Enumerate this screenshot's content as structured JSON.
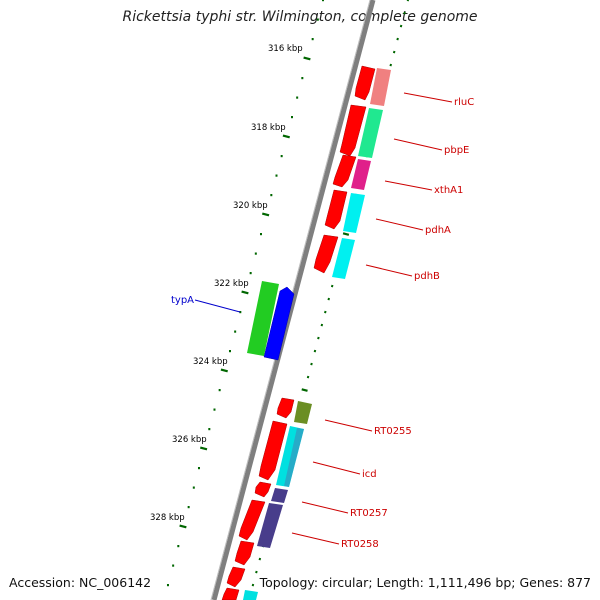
{
  "header": {
    "title": "Rickettsia typhi str. Wilmington, complete genome"
  },
  "footer": {
    "accession": "Accession: NC_006142",
    "summary": "Topology: circular; Length: 1,111,496 bp; Genes: 877"
  },
  "scale": {
    "ticks": [
      "316 kbp",
      "318 kbp",
      "320 kbp",
      "322 kbp",
      "324 kbp",
      "326 kbp",
      "328 kbp"
    ]
  },
  "genes": [
    {
      "label": "rluC",
      "color": "#cc0000"
    },
    {
      "label": "pbpE",
      "color": "#cc0000"
    },
    {
      "label": "xthA1",
      "color": "#cc0000"
    },
    {
      "label": "pdhA",
      "color": "#cc0000"
    },
    {
      "label": "pdhB",
      "color": "#cc0000"
    },
    {
      "label": "typA",
      "color": "#0000cc"
    },
    {
      "label": "RT0255",
      "color": "#cc0000"
    },
    {
      "label": "icd",
      "color": "#cc0000"
    },
    {
      "label": "RT0257",
      "color": "#cc0000"
    },
    {
      "label": "RT0258",
      "color": "#cc0000"
    }
  ],
  "colors": {
    "backbone": "#808080",
    "forward_cds": "#ff0000",
    "reverse_cds": "#0000ff",
    "gc_skew": "#006600"
  }
}
